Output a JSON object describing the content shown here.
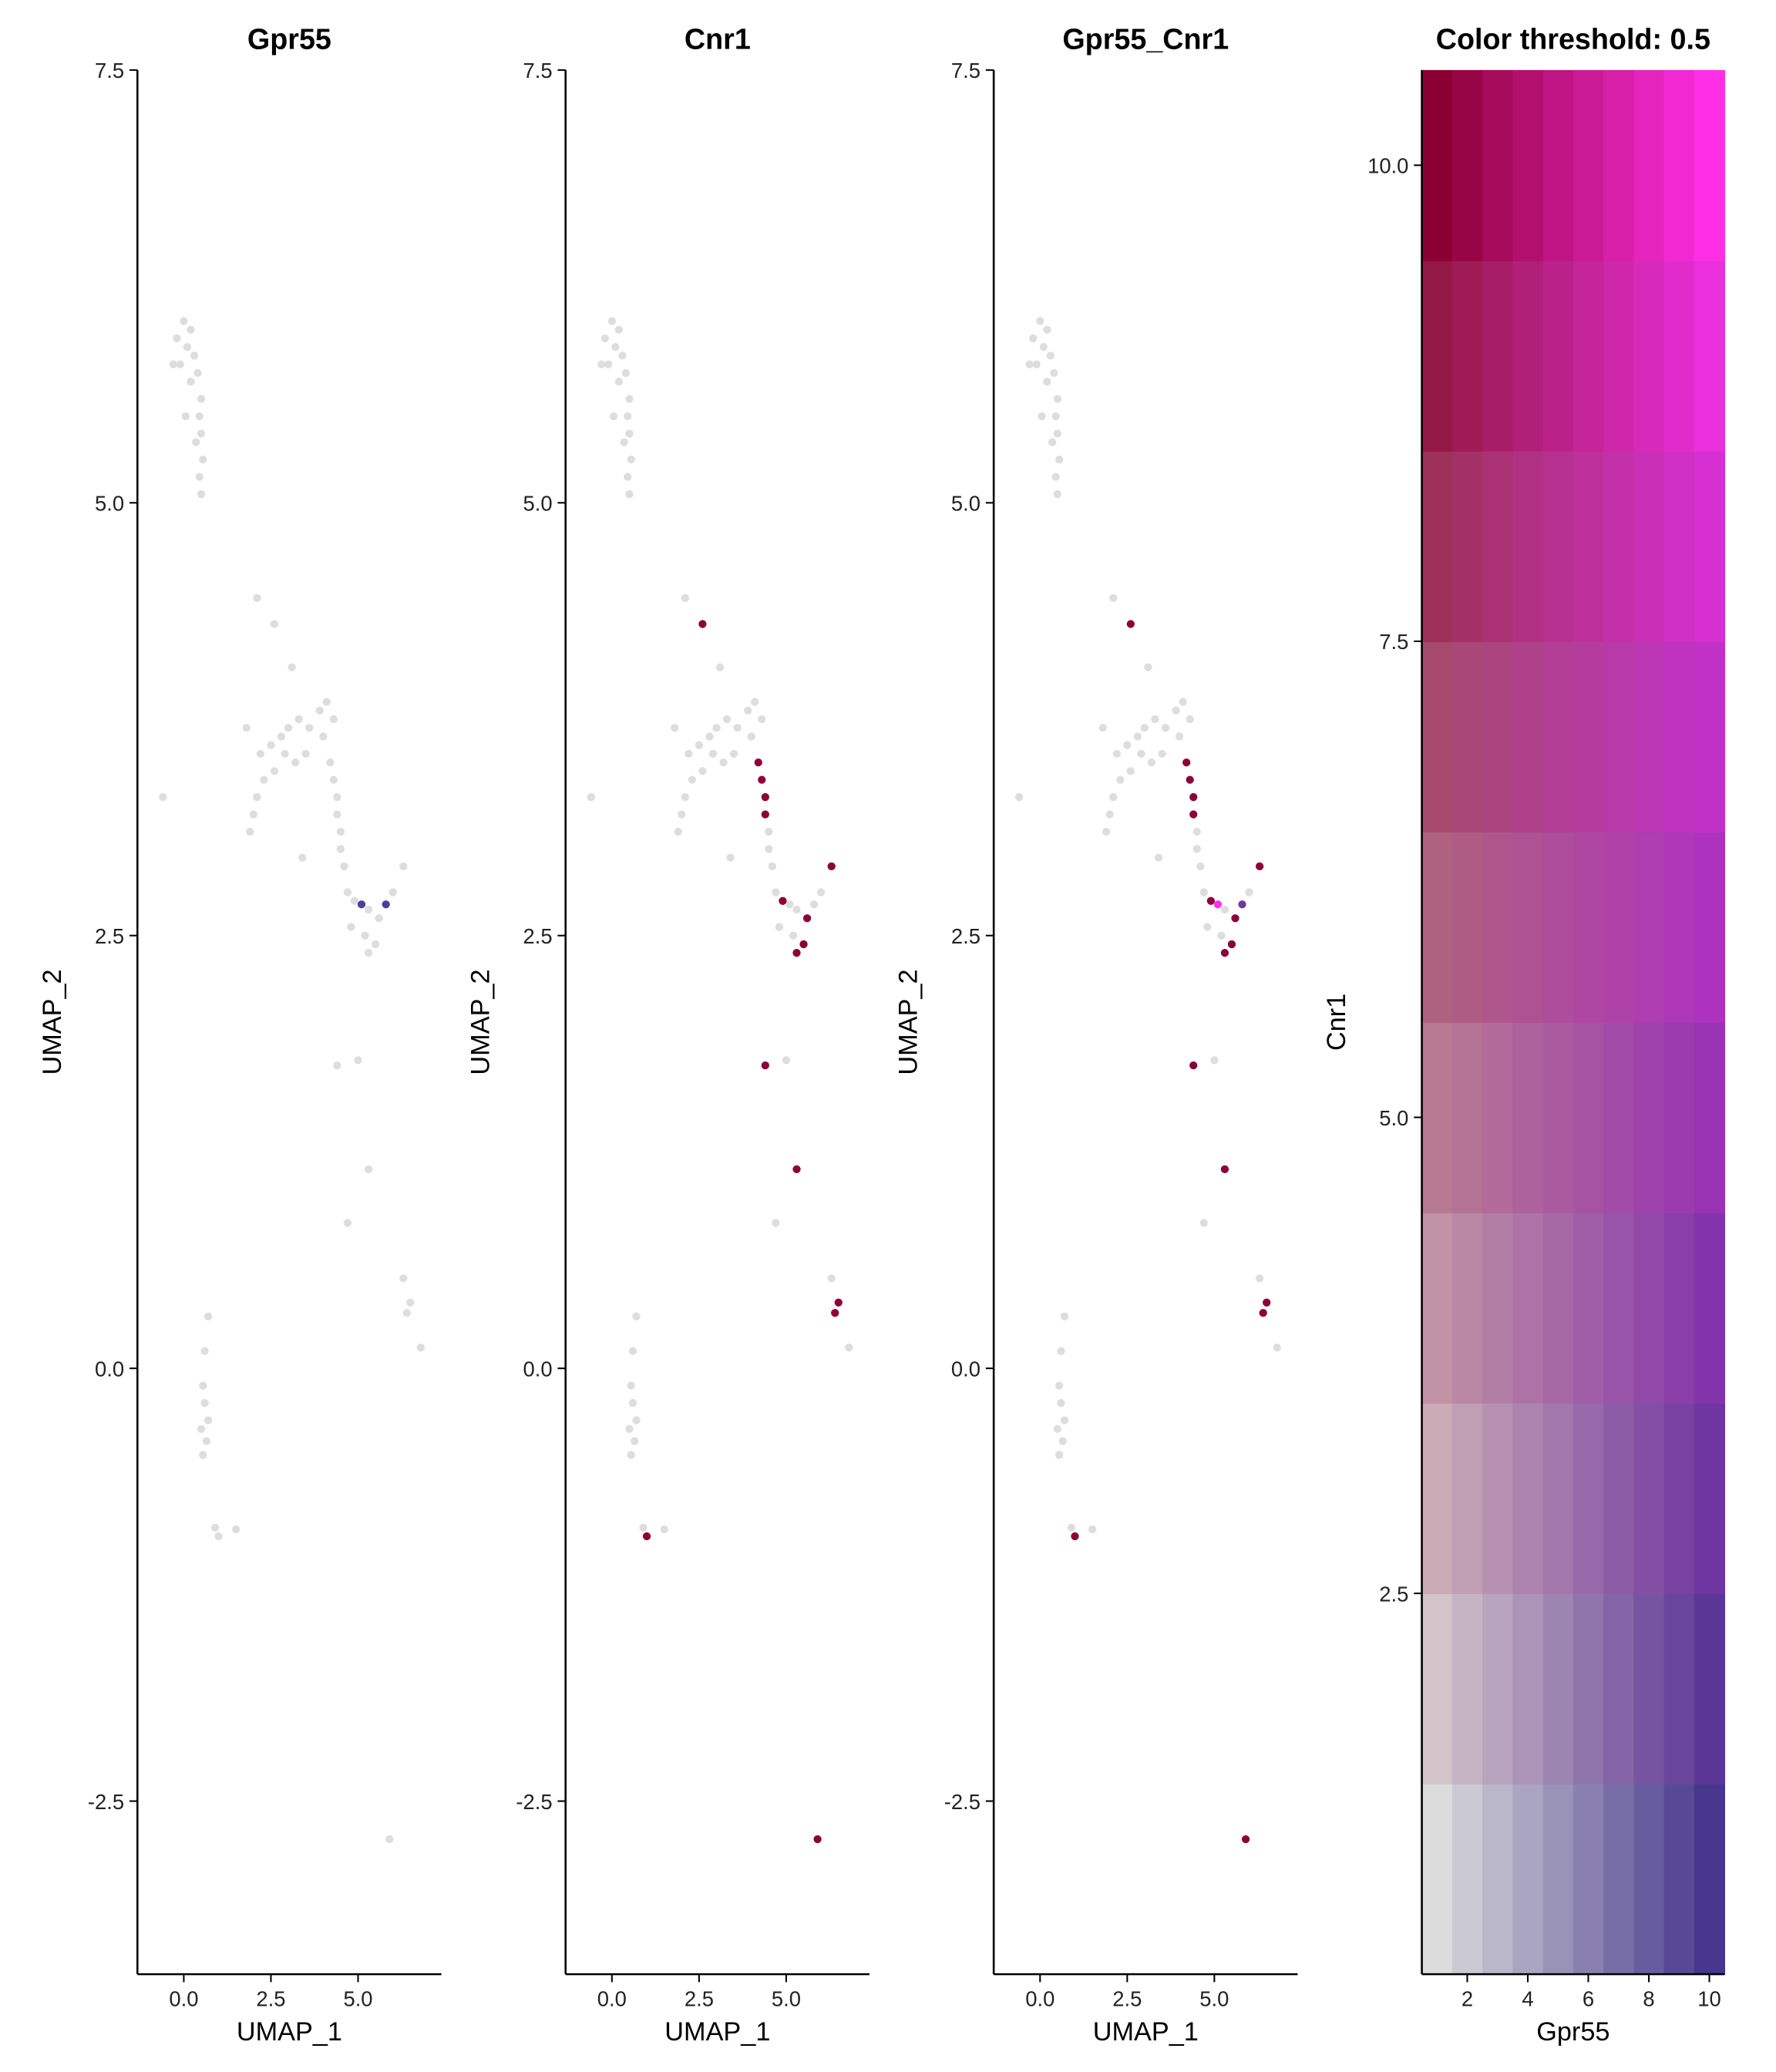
{
  "chart_data": [
    {
      "type": "scatter",
      "title": "Gpr55",
      "x_label": "UMAP_1",
      "y_label": "UMAP_2",
      "base_color": "#dddddd",
      "x": [
        -0.2,
        0,
        0.1,
        0.2,
        0.3,
        -0.1,
        0.4,
        0.2,
        0.5,
        0.45,
        0.35,
        -0.3,
        0.5,
        0.55,
        0.05,
        0.45,
        0.5,
        2.1,
        2.6,
        3.1,
        1.8,
        2.2,
        2.5,
        2.8,
        3.0,
        3.3,
        3.6,
        3.9,
        4.1,
        4.3,
        4.0,
        3.5,
        3.2,
        2.9,
        2.6,
        2.3,
        2.1,
        2.0,
        1.9,
        4.2,
        4.3,
        4.4,
        4.4,
        4.5,
        4.5,
        4.6,
        3.4,
        -0.6,
        4.7,
        4.9,
        5.1,
        5.3,
        5.6,
        5.8,
        6.3,
        5.2,
        5.5,
        5.3,
        4.8,
        6.0,
        4.4,
        5.0,
        5.3,
        4.7,
        6.3,
        6.5,
        6.4,
        6.8,
        0.7,
        0.6,
        0.55,
        0.6,
        0.5,
        0.65,
        0.55,
        0.7,
        1.0,
        0.9,
        1.5,
        5.9
      ],
      "y": [
        5.95,
        6.05,
        5.9,
        6.0,
        5.85,
        5.8,
        5.75,
        5.7,
        5.6,
        5.5,
        5.35,
        5.8,
        5.4,
        5.25,
        5.5,
        5.15,
        5.05,
        4.45,
        4.3,
        4.05,
        3.7,
        3.55,
        3.6,
        3.65,
        3.7,
        3.75,
        3.7,
        3.8,
        3.85,
        3.75,
        3.65,
        3.55,
        3.5,
        3.55,
        3.45,
        3.4,
        3.3,
        3.2,
        3.1,
        3.5,
        3.4,
        3.3,
        3.2,
        3.1,
        3.0,
        2.9,
        2.95,
        3.3,
        2.75,
        2.7,
        2.68,
        2.65,
        2.6,
        2.68,
        2.9,
        2.5,
        2.45,
        2.4,
        2.55,
        2.75,
        1.75,
        1.78,
        1.15,
        0.84,
        0.52,
        0.38,
        0.32,
        0.12,
        0.3,
        0.1,
        -0.1,
        -0.2,
        -0.35,
        -0.42,
        -0.5,
        -0.3,
        -0.97,
        -0.92,
        -0.93,
        -2.72
      ],
      "colors": [
        "#dddddd",
        "#dddddd",
        "#dddddd",
        "#dddddd",
        "#dddddd",
        "#dddddd",
        "#dddddd",
        "#dddddd",
        "#dddddd",
        "#dddddd",
        "#dddddd",
        "#dddddd",
        "#dddddd",
        "#dddddd",
        "#dddddd",
        "#dddddd",
        "#dddddd",
        "#dddddd",
        "#dddddd",
        "#dddddd",
        "#dddddd",
        "#dddddd",
        "#dddddd",
        "#dddddd",
        "#dddddd",
        "#dddddd",
        "#dddddd",
        "#dddddd",
        "#dddddd",
        "#dddddd",
        "#dddddd",
        "#dddddd",
        "#dddddd",
        "#dddddd",
        "#dddddd",
        "#dddddd",
        "#dddddd",
        "#dddddd",
        "#dddddd",
        "#dddddd",
        "#dddddd",
        "#dddddd",
        "#dddddd",
        "#dddddd",
        "#dddddd",
        "#dddddd",
        "#dddddd",
        "#dddddd",
        "#dddddd",
        "#dddddd",
        "#4b3f9a",
        "#dddddd",
        "#dddddd",
        "#4b3f9a",
        "#dddddd",
        "#dddddd",
        "#dddddd",
        "#dddddd",
        "#dddddd",
        "#dddddd",
        "#dddddd",
        "#dddddd",
        "#dddddd",
        "#dddddd",
        "#dddddd",
        "#dddddd",
        "#dddddd",
        "#dddddd",
        "#dddddd",
        "#dddddd",
        "#dddddd",
        "#dddddd",
        "#dddddd",
        "#dddddd",
        "#dddddd",
        "#dddddd",
        "#dddddd",
        "#dddddd",
        "#dddddd",
        "#dddddd"
      ],
      "xlim": [
        -1.33,
        7.39
      ],
      "ylim": [
        -3.5,
        7.5
      ],
      "xticks": [
        {
          "value": 0,
          "label": "0.0"
        },
        2.5,
        {
          "value": 5,
          "label": "5.0"
        }
      ],
      "yticks": [
        {
          "value": -2.5,
          "label": "-2.5"
        },
        {
          "value": 0,
          "label": "0.0"
        },
        2.5,
        {
          "value": 5,
          "label": "5.0"
        },
        7.5
      ]
    },
    {
      "type": "scatter",
      "title": "Cnr1",
      "x_label": "UMAP_1",
      "y_label": "UMAP_2",
      "base_color": "#dddddd",
      "x": [
        -0.2,
        0,
        0.1,
        0.2,
        0.3,
        -0.1,
        0.4,
        0.2,
        0.5,
        0.45,
        0.35,
        -0.3,
        0.5,
        0.55,
        0.05,
        0.45,
        0.5,
        2.1,
        2.6,
        3.1,
        1.8,
        2.2,
        2.5,
        2.8,
        3.0,
        3.3,
        3.6,
        3.9,
        4.1,
        4.3,
        4.0,
        3.5,
        3.2,
        2.9,
        2.6,
        2.3,
        2.1,
        2.0,
        1.9,
        4.2,
        4.3,
        4.4,
        4.4,
        4.5,
        4.5,
        4.6,
        3.4,
        -0.6,
        4.7,
        4.9,
        5.1,
        5.3,
        5.6,
        5.8,
        6.3,
        5.2,
        5.5,
        5.3,
        4.8,
        6.0,
        4.4,
        5.0,
        5.3,
        4.7,
        6.3,
        6.5,
        6.4,
        6.8,
        0.7,
        0.6,
        0.55,
        0.6,
        0.5,
        0.65,
        0.55,
        0.7,
        1.0,
        0.9,
        1.5,
        5.9
      ],
      "y": [
        5.95,
        6.05,
        5.9,
        6.0,
        5.85,
        5.8,
        5.75,
        5.7,
        5.6,
        5.5,
        5.35,
        5.8,
        5.4,
        5.25,
        5.5,
        5.15,
        5.05,
        4.45,
        4.3,
        4.05,
        3.7,
        3.55,
        3.6,
        3.65,
        3.7,
        3.75,
        3.7,
        3.8,
        3.85,
        3.75,
        3.65,
        3.55,
        3.5,
        3.55,
        3.45,
        3.4,
        3.3,
        3.2,
        3.1,
        3.5,
        3.4,
        3.3,
        3.2,
        3.1,
        3.0,
        2.9,
        2.95,
        3.3,
        2.75,
        2.7,
        2.68,
        2.65,
        2.6,
        2.68,
        2.9,
        2.5,
        2.45,
        2.4,
        2.55,
        2.75,
        1.75,
        1.78,
        1.15,
        0.84,
        0.52,
        0.38,
        0.32,
        0.12,
        0.3,
        0.1,
        -0.1,
        -0.2,
        -0.35,
        -0.42,
        -0.5,
        -0.3,
        -0.97,
        -0.92,
        -0.93,
        -2.72
      ],
      "colors": [
        "#dddddd",
        "#dddddd",
        "#dddddd",
        "#dddddd",
        "#dddddd",
        "#dddddd",
        "#dddddd",
        "#dddddd",
        "#dddddd",
        "#dddddd",
        "#dddddd",
        "#dddddd",
        "#dddddd",
        "#dddddd",
        "#dddddd",
        "#dddddd",
        "#dddddd",
        "#dddddd",
        "#8b0038",
        "#dddddd",
        "#dddddd",
        "#dddddd",
        "#dddddd",
        "#dddddd",
        "#dddddd",
        "#dddddd",
        "#dddddd",
        "#dddddd",
        "#dddddd",
        "#dddddd",
        "#dddddd",
        "#dddddd",
        "#dddddd",
        "#dddddd",
        "#dddddd",
        "#dddddd",
        "#dddddd",
        "#dddddd",
        "#dddddd",
        "#8b0038",
        "#8b0038",
        "#8b0038",
        "#8b0038",
        "#dddddd",
        "#dddddd",
        "#dddddd",
        "#dddddd",
        "#dddddd",
        "#dddddd",
        "#8b0038",
        "#dddddd",
        "#dddddd",
        "#8b0038",
        "#dddddd",
        "#8b0038",
        "#dddddd",
        "#8b0038",
        "#8b0038",
        "#dddddd",
        "#dddddd",
        "#8b0038",
        "#dddddd",
        "#8b0038",
        "#dddddd",
        "#dddddd",
        "#8b0038",
        "#8b0038",
        "#dddddd",
        "#dddddd",
        "#dddddd",
        "#dddddd",
        "#dddddd",
        "#dddddd",
        "#dddddd",
        "#dddddd",
        "#dddddd",
        "#8b0038",
        "#dddddd",
        "#dddddd",
        "#8b0038"
      ],
      "xlim": [
        -1.33,
        7.39
      ],
      "ylim": [
        -3.5,
        7.5
      ],
      "xticks": [
        {
          "value": 0,
          "label": "0.0"
        },
        2.5,
        {
          "value": 5,
          "label": "5.0"
        }
      ],
      "yticks": [
        {
          "value": -2.5,
          "label": "-2.5"
        },
        {
          "value": 0,
          "label": "0.0"
        },
        2.5,
        {
          "value": 5,
          "label": "5.0"
        },
        7.5
      ]
    },
    {
      "type": "scatter",
      "title": "Gpr55_Cnr1",
      "x_label": "UMAP_1",
      "y_label": "UMAP_2",
      "base_color": "#dddddd",
      "x": [
        -0.2,
        0,
        0.1,
        0.2,
        0.3,
        -0.1,
        0.4,
        0.2,
        0.5,
        0.45,
        0.35,
        -0.3,
        0.5,
        0.55,
        0.05,
        0.45,
        0.5,
        2.1,
        2.6,
        3.1,
        1.8,
        2.2,
        2.5,
        2.8,
        3.0,
        3.3,
        3.6,
        3.9,
        4.1,
        4.3,
        4.0,
        3.5,
        3.2,
        2.9,
        2.6,
        2.3,
        2.1,
        2.0,
        1.9,
        4.2,
        4.3,
        4.4,
        4.4,
        4.5,
        4.5,
        4.6,
        3.4,
        -0.6,
        4.7,
        4.9,
        5.1,
        5.3,
        5.6,
        5.8,
        6.3,
        5.2,
        5.5,
        5.3,
        4.8,
        6.0,
        4.4,
        5.0,
        5.3,
        4.7,
        6.3,
        6.5,
        6.4,
        6.8,
        0.7,
        0.6,
        0.55,
        0.6,
        0.5,
        0.65,
        0.55,
        0.7,
        1.0,
        0.9,
        1.5,
        5.9
      ],
      "y": [
        5.95,
        6.05,
        5.9,
        6.0,
        5.85,
        5.8,
        5.75,
        5.7,
        5.6,
        5.5,
        5.35,
        5.8,
        5.4,
        5.25,
        5.5,
        5.15,
        5.05,
        4.45,
        4.3,
        4.05,
        3.7,
        3.55,
        3.6,
        3.65,
        3.7,
        3.75,
        3.7,
        3.8,
        3.85,
        3.75,
        3.65,
        3.55,
        3.5,
        3.55,
        3.45,
        3.4,
        3.3,
        3.2,
        3.1,
        3.5,
        3.4,
        3.3,
        3.2,
        3.1,
        3.0,
        2.9,
        2.95,
        3.3,
        2.75,
        2.7,
        2.68,
        2.65,
        2.6,
        2.68,
        2.9,
        2.5,
        2.45,
        2.4,
        2.55,
        2.75,
        1.75,
        1.78,
        1.15,
        0.84,
        0.52,
        0.38,
        0.32,
        0.12,
        0.3,
        0.1,
        -0.1,
        -0.2,
        -0.35,
        -0.42,
        -0.5,
        -0.3,
        -0.97,
        -0.92,
        -0.93,
        -2.72
      ],
      "colors": [
        "#dddddd",
        "#dddddd",
        "#dddddd",
        "#dddddd",
        "#dddddd",
        "#dddddd",
        "#dddddd",
        "#dddddd",
        "#dddddd",
        "#dddddd",
        "#dddddd",
        "#dddddd",
        "#dddddd",
        "#dddddd",
        "#dddddd",
        "#dddddd",
        "#dddddd",
        "#dddddd",
        "#8b0038",
        "#dddddd",
        "#dddddd",
        "#dddddd",
        "#dddddd",
        "#dddddd",
        "#dddddd",
        "#dddddd",
        "#dddddd",
        "#dddddd",
        "#dddddd",
        "#dddddd",
        "#dddddd",
        "#dddddd",
        "#dddddd",
        "#dddddd",
        "#dddddd",
        "#dddddd",
        "#dddddd",
        "#dddddd",
        "#dddddd",
        "#8b0038",
        "#8b0038",
        "#8b0038",
        "#8b0038",
        "#dddddd",
        "#dddddd",
        "#dddddd",
        "#dddddd",
        "#dddddd",
        "#dddddd",
        "#8b0038",
        "#ff33e6",
        "#dddddd",
        "#8b0038",
        "#6e3a96",
        "#8b0038",
        "#dddddd",
        "#8b0038",
        "#8b0038",
        "#dddddd",
        "#dddddd",
        "#8b0038",
        "#dddddd",
        "#8b0038",
        "#dddddd",
        "#dddddd",
        "#8b0038",
        "#8b0038",
        "#dddddd",
        "#dddddd",
        "#dddddd",
        "#dddddd",
        "#dddddd",
        "#dddddd",
        "#dddddd",
        "#dddddd",
        "#dddddd",
        "#8b0038",
        "#dddddd",
        "#dddddd",
        "#8b0038"
      ],
      "xlim": [
        -1.33,
        7.39
      ],
      "ylim": [
        -3.5,
        7.5
      ],
      "xticks": [
        {
          "value": 0,
          "label": "0.0"
        },
        2.5,
        {
          "value": 5,
          "label": "5.0"
        }
      ],
      "yticks": [
        {
          "value": -2.5,
          "label": "-2.5"
        },
        {
          "value": 0,
          "label": "0.0"
        },
        2.5,
        {
          "value": 5,
          "label": "5.0"
        },
        7.5
      ]
    },
    {
      "type": "heatmap",
      "title": "Color threshold: 0.5",
      "x_label": "Gpr55",
      "y_label": "Cnr1",
      "x": [
        1,
        2,
        3,
        4,
        5,
        6,
        7,
        8,
        9,
        10
      ],
      "y": [
        1,
        2,
        3,
        4,
        5,
        6,
        7,
        8,
        9,
        10
      ],
      "corner_colors": {
        "low": "#dcdcdc",
        "x_high": "#46378c",
        "y_high": "#8b0033",
        "both_high": "#ff2ee6"
      },
      "xlim": [
        0.5,
        10.5
      ],
      "ylim": [
        0.5,
        10.5
      ],
      "xticks": [
        2,
        4,
        6,
        8,
        10
      ],
      "yticks": [
        2.5,
        {
          "value": 5,
          "label": "5.0"
        },
        7.5,
        {
          "value": 10,
          "label": "10.0"
        }
      ]
    }
  ]
}
